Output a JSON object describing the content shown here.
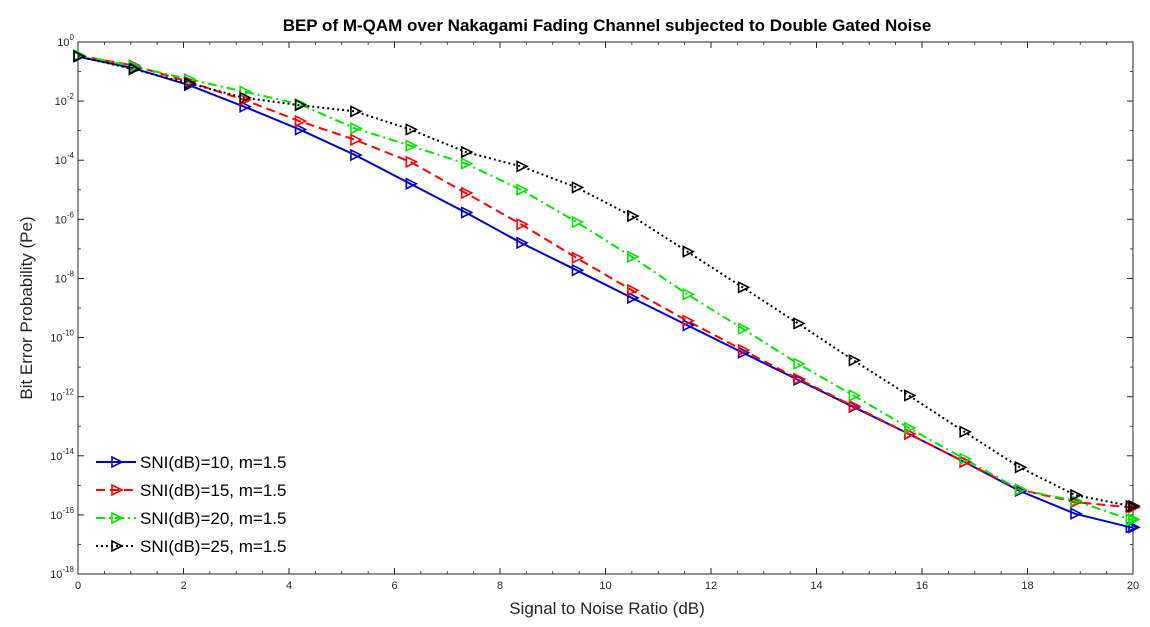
{
  "chart_data": {
    "type": "line",
    "title": "BEP of M-QAM over Nakagami Fading Channel subjected to Double Gated Noise",
    "xlabel": "Signal to Noise Ratio (dB)",
    "ylabel": "Bit Error Probability (Pe)",
    "xlim": [
      0,
      20
    ],
    "ylim": [
      1e-18,
      1
    ],
    "yscale": "log",
    "grid": false,
    "legend_position": "bottom-left",
    "x_ticks": [
      "0",
      "2",
      "4",
      "6",
      "8",
      "10",
      "12",
      "14",
      "16",
      "18",
      "20"
    ],
    "y_ticks": [
      {
        "base": "10",
        "exp": "0"
      },
      {
        "base": "10",
        "exp": "-2"
      },
      {
        "base": "10",
        "exp": "-4"
      },
      {
        "base": "10",
        "exp": "-6"
      },
      {
        "base": "10",
        "exp": "-8"
      },
      {
        "base": "10",
        "exp": "-10"
      },
      {
        "base": "10",
        "exp": "-12"
      },
      {
        "base": "10",
        "exp": "-14"
      },
      {
        "base": "10",
        "exp": "-16"
      },
      {
        "base": "10",
        "exp": "-18"
      }
    ],
    "x": [
      0,
      1.05,
      2.1,
      3.15,
      4.2,
      5.25,
      6.3,
      7.35,
      8.4,
      9.45,
      10.5,
      11.55,
      12.6,
      13.65,
      14.7,
      15.75,
      16.8,
      17.85,
      18.9,
      19.95,
      20
    ],
    "series": [
      {
        "name": "SNI(dB)=10, m=1.5",
        "color": "#0000cc",
        "dash": "solid",
        "values": [
          0.32,
          0.13,
          0.035,
          0.0065,
          0.0011,
          0.00015,
          1.6e-05,
          1.7e-06,
          1.6e-07,
          1.9e-08,
          2.2e-09,
          2.6e-10,
          3.1e-11,
          3.7e-12,
          4.5e-13,
          5.5e-14,
          6.2e-15,
          6.5e-16,
          1.1e-16,
          3.8e-17,
          3.8e-17
        ]
      },
      {
        "name": "SNI(dB)=15, m=1.5",
        "color": "#ff0000",
        "dash": "dashed",
        "values": [
          0.35,
          0.16,
          0.045,
          0.011,
          0.0021,
          0.00049,
          8.8e-05,
          7.8e-06,
          6.8e-07,
          5e-08,
          4e-09,
          3.7e-10,
          3.8e-11,
          4e-12,
          4.8e-13,
          5.5e-14,
          6.3e-15,
          7.2e-16,
          2.7e-16,
          1.8e-16,
          1.8e-16
        ]
      },
      {
        "name": "SNI(dB)=20, m=1.5",
        "color": "#00e600",
        "dash": "dashdot",
        "values": [
          0.36,
          0.15,
          0.055,
          0.021,
          0.0079,
          0.0012,
          0.00031,
          7.7e-05,
          1e-05,
          8.1e-07,
          5.4e-08,
          2.9e-09,
          2e-10,
          1.3e-11,
          1.1e-12,
          8.8e-14,
          7.9e-15,
          7.2e-16,
          3e-16,
          7e-17,
          7e-17
        ]
      },
      {
        "name": "SNI(dB)=25, m=1.5",
        "color": "#000000",
        "dash": "dotted",
        "values": [
          0.33,
          0.12,
          0.04,
          0.013,
          0.0073,
          0.0045,
          0.0011,
          0.00019,
          6.2e-05,
          1.2e-05,
          1.3e-06,
          8.1e-08,
          5e-09,
          3e-10,
          1.7e-11,
          1.1e-12,
          6.5e-14,
          4.1e-15,
          4.7e-16,
          2e-16,
          2e-16
        ]
      }
    ]
  }
}
